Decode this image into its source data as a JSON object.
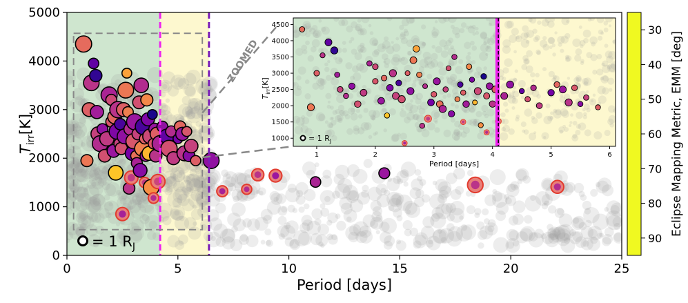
{
  "chart_data": [
    {
      "type": "scatter",
      "name": "main",
      "xlabel": "Period [days]",
      "ylabel": "T_irr[K]",
      "ylabel_main": "T",
      "ylabel_sub": "irr",
      "ylabel_unit": "[K]",
      "xlim": [
        0,
        25
      ],
      "ylim": [
        0,
        5000
      ],
      "xticks": [
        "0",
        "5",
        "10",
        "15",
        "20",
        "25"
      ],
      "yticks": [
        "0",
        "1000",
        "2000",
        "3000",
        "4000",
        "5000"
      ],
      "regions": [
        {
          "name": "green",
          "x": [
            0,
            4.2
          ],
          "color": "#cfe6cf"
        },
        {
          "name": "yellow",
          "x": [
            4.2,
            6.4
          ],
          "color": "#fdf8cf"
        }
      ],
      "vlines": [
        {
          "x": 4.2,
          "color": "#ee22ee"
        },
        {
          "x": 6.4,
          "color": "#7a1db8"
        }
      ],
      "zoom_box": {
        "x": [
          0.3,
          6.1
        ],
        "y": [
          530,
          4570
        ]
      },
      "zoom_label": "ZOOMED",
      "legend_label": "= 1 R",
      "legend_sub": "J",
      "points": [
        {
          "p": 0.75,
          "t": 4350,
          "emm": 55
        },
        {
          "p": 1.0,
          "t": 3000,
          "emm": 58
        },
        {
          "p": 0.9,
          "t": 1950,
          "emm": 52
        },
        {
          "p": 1.2,
          "t": 3950,
          "emm": 88
        },
        {
          "p": 1.1,
          "t": 3550,
          "emm": 70
        },
        {
          "p": 1.3,
          "t": 3700,
          "emm": 92
        },
        {
          "p": 1.35,
          "t": 2950,
          "emm": 76
        },
        {
          "p": 1.4,
          "t": 2500,
          "emm": 66
        },
        {
          "p": 1.5,
          "t": 2300,
          "emm": 72
        },
        {
          "p": 1.6,
          "t": 2600,
          "emm": 80
        },
        {
          "p": 1.7,
          "t": 2050,
          "emm": 62
        },
        {
          "p": 1.8,
          "t": 2400,
          "emm": 68
        },
        {
          "p": 1.9,
          "t": 3300,
          "emm": 74
        },
        {
          "p": 2.0,
          "t": 3200,
          "emm": 64
        },
        {
          "p": 2.0,
          "t": 2750,
          "emm": 60
        },
        {
          "p": 2.1,
          "t": 2150,
          "emm": 78
        },
        {
          "p": 2.15,
          "t": 2850,
          "emm": 56
        },
        {
          "p": 2.2,
          "t": 1700,
          "emm": 35
        },
        {
          "p": 2.25,
          "t": 2550,
          "emm": 84
        },
        {
          "p": 2.3,
          "t": 3000,
          "emm": 70
        },
        {
          "p": 2.35,
          "t": 2300,
          "emm": 66
        },
        {
          "p": 2.4,
          "t": 2700,
          "emm": 90
        },
        {
          "p": 2.45,
          "t": 2200,
          "emm": 62
        },
        {
          "p": 2.5,
          "t": 850,
          "emm": 75,
          "ring": true
        },
        {
          "p": 2.55,
          "t": 3000,
          "emm": 58
        },
        {
          "p": 2.6,
          "t": 2450,
          "emm": 80
        },
        {
          "p": 2.65,
          "t": 3400,
          "emm": 52
        },
        {
          "p": 2.7,
          "t": 3750,
          "emm": 42
        },
        {
          "p": 2.75,
          "t": 2950,
          "emm": 50
        },
        {
          "p": 2.8,
          "t": 1380,
          "emm": 70
        },
        {
          "p": 2.85,
          "t": 2600,
          "emm": 72
        },
        {
          "p": 2.9,
          "t": 1600,
          "emm": 68,
          "ring": true
        },
        {
          "p": 2.95,
          "t": 2100,
          "emm": 86
        },
        {
          "p": 3.0,
          "t": 2350,
          "emm": 60
        },
        {
          "p": 3.05,
          "t": 2750,
          "emm": 78
        },
        {
          "p": 3.1,
          "t": 2050,
          "emm": 54
        },
        {
          "p": 3.15,
          "t": 1900,
          "emm": 74
        },
        {
          "p": 3.2,
          "t": 2500,
          "emm": 66
        },
        {
          "p": 3.25,
          "t": 3150,
          "emm": 62
        },
        {
          "p": 3.3,
          "t": 1750,
          "emm": 82
        },
        {
          "p": 3.35,
          "t": 3500,
          "emm": 72
        },
        {
          "p": 3.4,
          "t": 2200,
          "emm": 50
        },
        {
          "p": 3.45,
          "t": 2650,
          "emm": 90
        },
        {
          "p": 3.5,
          "t": 2400,
          "emm": 58
        },
        {
          "p": 3.5,
          "t": 1500,
          "emm": 68,
          "ring": true
        },
        {
          "p": 3.55,
          "t": 2050,
          "emm": 76
        },
        {
          "p": 3.6,
          "t": 3200,
          "emm": 48
        },
        {
          "p": 3.65,
          "t": 2800,
          "emm": 84
        },
        {
          "p": 3.7,
          "t": 2100,
          "emm": 38
        },
        {
          "p": 3.75,
          "t": 2450,
          "emm": 64
        },
        {
          "p": 3.8,
          "t": 1400,
          "emm": 46
        },
        {
          "p": 3.85,
          "t": 2900,
          "emm": 94
        },
        {
          "p": 3.9,
          "t": 2300,
          "emm": 60
        },
        {
          "p": 3.9,
          "t": 1180,
          "emm": 72,
          "ring": true
        },
        {
          "p": 3.95,
          "t": 2600,
          "emm": 78
        },
        {
          "p": 4.0,
          "t": 2050,
          "emm": 70
        },
        {
          "p": 4.05,
          "t": 2500,
          "emm": 58
        },
        {
          "p": 4.1,
          "t": 1520,
          "emm": 65,
          "ring": true
        },
        {
          "p": 4.2,
          "t": 2300,
          "emm": 74
        },
        {
          "p": 4.3,
          "t": 2650,
          "emm": 80
        },
        {
          "p": 4.5,
          "t": 2450,
          "emm": 88
        },
        {
          "p": 4.6,
          "t": 2200,
          "emm": 62
        },
        {
          "p": 4.7,
          "t": 2550,
          "emm": 72
        },
        {
          "p": 4.8,
          "t": 2000,
          "emm": 68
        },
        {
          "p": 5.0,
          "t": 2400,
          "emm": 86
        },
        {
          "p": 5.1,
          "t": 2650,
          "emm": 56
        },
        {
          "p": 5.2,
          "t": 2500,
          "emm": 78
        },
        {
          "p": 5.3,
          "t": 2100,
          "emm": 70
        },
        {
          "p": 5.4,
          "t": 2550,
          "emm": 60
        },
        {
          "p": 5.5,
          "t": 2050,
          "emm": 82
        },
        {
          "p": 5.6,
          "t": 2250,
          "emm": 66
        },
        {
          "p": 5.8,
          "t": 1950,
          "emm": 58
        },
        {
          "p": 6.5,
          "t": 1950,
          "emm": 80
        },
        {
          "p": 7.0,
          "t": 1320,
          "emm": 75,
          "ring": true
        },
        {
          "p": 8.1,
          "t": 1360,
          "emm": 72,
          "ring": true
        },
        {
          "p": 8.6,
          "t": 1660,
          "emm": 70,
          "ring": true
        },
        {
          "p": 9.4,
          "t": 1640,
          "emm": 78,
          "ring": true
        },
        {
          "p": 11.2,
          "t": 1510,
          "emm": 74
        },
        {
          "p": 14.3,
          "t": 1690,
          "emm": 78
        },
        {
          "p": 18.4,
          "t": 1450,
          "emm": 70,
          "ring": true
        },
        {
          "p": 22.1,
          "t": 1410,
          "emm": 72,
          "ring": true
        }
      ]
    },
    {
      "type": "scatter",
      "name": "inset",
      "xlabel": "Period [days]",
      "ylabel": "T_irr[K]",
      "xlim": [
        0.6,
        6.1
      ],
      "ylim": [
        750,
        4700
      ],
      "xticks": [
        "1",
        "2",
        "3",
        "4",
        "5",
        "6"
      ],
      "yticks": [
        "1000",
        "1500",
        "2000",
        "2500",
        "3000",
        "3500",
        "4000",
        "4500"
      ],
      "legend_label": "= 1 R",
      "legend_sub": "J",
      "points_from": "main (periods 0.6-6.1)"
    },
    {
      "type": "colorbar",
      "label": "Eclipse Mapping Metric, EMM [deg]",
      "ticks": [
        "30",
        "40",
        "50",
        "60",
        "70",
        "80",
        "90"
      ],
      "range": [
        25,
        95
      ],
      "colormap": "plasma_r"
    }
  ]
}
